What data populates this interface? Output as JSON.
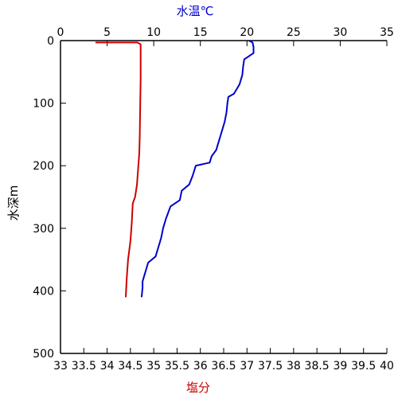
{
  "chart_data": {
    "type": "line",
    "title": "",
    "ylabel": "水深m",
    "ylim": [
      500,
      0
    ],
    "yticks": [
      "0",
      "100",
      "200",
      "300",
      "400",
      "500"
    ],
    "yticks_values": [
      0,
      100,
      200,
      300,
      400,
      500
    ],
    "top_axis": {
      "label": "水温℃",
      "range": [
        0,
        35
      ],
      "ticks": [
        "0",
        "5",
        "10",
        "15",
        "20",
        "25",
        "30",
        "35"
      ],
      "tick_values": [
        0,
        5,
        10,
        15,
        20,
        25,
        30,
        35
      ],
      "color": "#0000cc"
    },
    "bottom_axis": {
      "label": "塩分",
      "range": [
        33,
        40
      ],
      "ticks": [
        "33",
        "33.5",
        "34",
        "34.5",
        "35",
        "35.5",
        "36",
        "36.5",
        "37",
        "37.5",
        "38",
        "38.5",
        "39",
        "39.5",
        "40"
      ],
      "tick_values": [
        33,
        33.5,
        34,
        34.5,
        35,
        35.5,
        36,
        36.5,
        37,
        37.5,
        38,
        38.5,
        39,
        39.5,
        40
      ],
      "color": "#cc0000"
    },
    "grid": false,
    "series": [
      {
        "axis": "top",
        "color": "#0000cc",
        "points": [
          [
            20.2,
            0
          ],
          [
            20.6,
            3
          ],
          [
            20.7,
            10
          ],
          [
            20.7,
            20
          ],
          [
            20.2,
            25
          ],
          [
            19.7,
            30
          ],
          [
            19.6,
            40
          ],
          [
            19.5,
            55
          ],
          [
            19.2,
            70
          ],
          [
            18.6,
            85
          ],
          [
            18.0,
            90
          ],
          [
            17.9,
            100
          ],
          [
            17.8,
            115
          ],
          [
            17.6,
            130
          ],
          [
            17.2,
            150
          ],
          [
            17.0,
            160
          ],
          [
            16.7,
            175
          ],
          [
            16.2,
            185
          ],
          [
            16.0,
            195
          ],
          [
            14.5,
            200
          ],
          [
            14.2,
            215
          ],
          [
            13.8,
            230
          ],
          [
            13.0,
            240
          ],
          [
            12.8,
            255
          ],
          [
            11.8,
            265
          ],
          [
            11.3,
            285
          ],
          [
            11.0,
            300
          ],
          [
            10.8,
            315
          ],
          [
            10.6,
            325
          ],
          [
            10.4,
            335
          ],
          [
            10.2,
            345
          ],
          [
            9.8,
            350
          ],
          [
            9.4,
            355
          ],
          [
            9.2,
            365
          ],
          [
            9.0,
            375
          ],
          [
            8.8,
            385
          ],
          [
            8.8,
            395
          ],
          [
            8.7,
            410
          ]
        ]
      },
      {
        "axis": "bottom",
        "color": "#cc0000",
        "points": [
          [
            33.75,
            3
          ],
          [
            34.65,
            3
          ],
          [
            34.72,
            6
          ],
          [
            34.72,
            20
          ],
          [
            34.72,
            60
          ],
          [
            34.71,
            100
          ],
          [
            34.7,
            150
          ],
          [
            34.69,
            180
          ],
          [
            34.67,
            200
          ],
          [
            34.64,
            230
          ],
          [
            34.6,
            250
          ],
          [
            34.55,
            260
          ],
          [
            34.53,
            290
          ],
          [
            34.5,
            320
          ],
          [
            34.45,
            350
          ],
          [
            34.42,
            380
          ],
          [
            34.4,
            410
          ]
        ]
      }
    ]
  }
}
